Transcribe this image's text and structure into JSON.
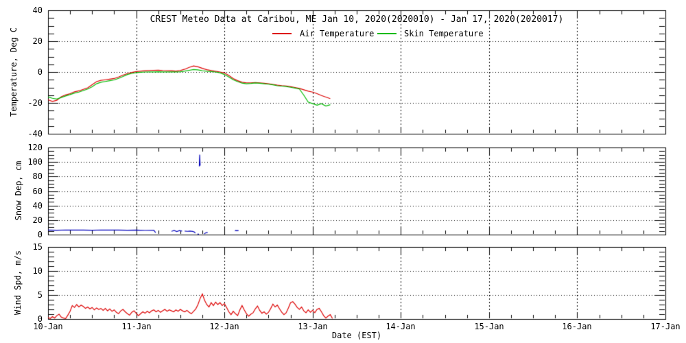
{
  "title": "CREST Meteo Data at Caribou, ME   Jan 10, 2020(2020010) - Jan 17, 2020(2020017)",
  "legend": {
    "air_label": "Air Temperature",
    "skin_label": "Skin Temperature",
    "air_color": "#dd0000",
    "skin_color": "#00bb00"
  },
  "xaxis": {
    "label": "Date (EST)",
    "xlim": [
      10,
      17
    ],
    "tick_values": [
      10,
      11,
      12,
      13,
      14,
      15,
      16,
      17
    ],
    "tick_labels": [
      "10-Jan",
      "11-Jan",
      "12-Jan",
      "13-Jan",
      "14-Jan",
      "15-Jan",
      "16-Jan",
      "17-Jan"
    ],
    "minor_step": 0.25,
    "grid": "dotted vertical at interior day ticks"
  },
  "chart_data": [
    {
      "type": "line",
      "panel": "temperature",
      "ylabel": "Temperature, Deg C",
      "ylim": [
        -40,
        40
      ],
      "yticks": [
        -40,
        -20,
        0,
        20,
        40
      ],
      "yminor": 5,
      "grid": "dotted horizontal at -20, 0, 20",
      "series": [
        {
          "name": "Air Temperature",
          "color": "#dd0000",
          "x0": 10.0,
          "dx": 0.05,
          "y": [
            -18,
            -19,
            -18.3,
            -16,
            -14.8,
            -14,
            -12.8,
            -12.2,
            -11.2,
            -10.2,
            -8.2,
            -6.2,
            -5.4,
            -5,
            -4.6,
            -4.2,
            -3.2,
            -2,
            -1,
            -0.3,
            0.3,
            0.6,
            0.8,
            1,
            1.1,
            1.2,
            1,
            0.9,
            0.8,
            0.6,
            1,
            1.8,
            3,
            3.9,
            3.4,
            2.4,
            1.5,
            1,
            0.5,
            0,
            -0.6,
            -2.2,
            -4.2,
            -5.6,
            -6.6,
            -7,
            -7,
            -6.8,
            -7,
            -7.3,
            -7.6,
            -8,
            -8.5,
            -8.8,
            -9,
            -9.5,
            -10,
            -10.6,
            -11.5,
            -12.4,
            -13,
            -14,
            -15.2,
            -16.2,
            -17.2
          ]
        },
        {
          "name": "Skin Temperature",
          "color": "#00bb00",
          "x0": 10.0,
          "dx": 0.05,
          "y": [
            -16.2,
            -17,
            -17.5,
            -16.5,
            -15.5,
            -14.6,
            -13.6,
            -13,
            -12,
            -11,
            -9.6,
            -7.6,
            -6.6,
            -6.1,
            -5.6,
            -5.1,
            -4.1,
            -2.9,
            -1.6,
            -0.9,
            -0.4,
            -0.2,
            0,
            0.1,
            0.1,
            0.2,
            0.1,
            0.1,
            0.1,
            0.1,
            0.2,
            0.6,
            1.1,
            1.6,
            1.4,
            0.9,
            0.5,
            0.3,
            0,
            -0.5,
            -1.6,
            -3.2,
            -5,
            -6.2,
            -7.2,
            -7.6,
            -7.4,
            -7.1,
            -7.3,
            -7.6,
            -7.9,
            -8.3,
            -8.9,
            -9.1,
            -9.4,
            -9.9,
            -10.4,
            -11,
            -15,
            -19.5,
            -20.5,
            -21.5,
            -20.5,
            -22,
            -21.2
          ]
        }
      ]
    },
    {
      "type": "line",
      "panel": "snow_depth",
      "ylabel": "Snow Dep, cm",
      "ylim": [
        0,
        120
      ],
      "yticks": [
        0,
        20,
        40,
        60,
        80,
        100,
        120
      ],
      "yminor": 5,
      "grid": "dotted horizontal at 20,40,60,80,100",
      "series": [
        {
          "name": "Snow Depth",
          "color": "#0000bb",
          "x": [
            10.0,
            10.1,
            10.2,
            10.3,
            10.4,
            10.5,
            10.6,
            10.7,
            10.8,
            10.9,
            11.0,
            11.1,
            11.2,
            11.22,
            null,
            11.4,
            11.43,
            11.46,
            11.49,
            11.52,
            null,
            11.55,
            11.58,
            11.61,
            11.64,
            11.66,
            11.67,
            null,
            11.695,
            11.71,
            null,
            11.715,
            11.72,
            11.725,
            null,
            11.77,
            11.79,
            11.81,
            null,
            12.12,
            12.13,
            12.14,
            12.15,
            12.16
          ],
          "y": [
            6.3,
            6.1,
            6.4,
            6.2,
            6.3,
            6.0,
            6.4,
            6.2,
            6.3,
            6.1,
            6.3,
            5.9,
            6.0,
            2.8,
            null,
            4.5,
            5.8,
            4.2,
            5.5,
            4.8,
            null,
            4.8,
            4.5,
            4.8,
            4.4,
            3.5,
            2.0,
            null,
            0.8,
            0.6,
            null,
            94,
            110,
            95,
            null,
            1.0,
            2.5,
            3.0,
            null,
            5.0,
            6.0,
            5.2,
            5.8,
            5.3
          ]
        }
      ]
    },
    {
      "type": "line",
      "panel": "wind_speed",
      "ylabel": "Wind Spd, m/s",
      "ylim": [
        0,
        15
      ],
      "yticks": [
        0,
        5,
        10,
        15
      ],
      "yminor": 1,
      "grid": "dotted horizontal at 5,10",
      "series": [
        {
          "name": "Wind Speed",
          "color": "#dd0000",
          "x0": 10.0,
          "dx": 0.025,
          "y": [
            0.3,
            0.1,
            0.5,
            0.2,
            0.7,
            1.0,
            0.4,
            0.2,
            0.1,
            0.8,
            1.6,
            2.8,
            2.4,
            3.0,
            2.5,
            2.9,
            2.6,
            2.2,
            2.5,
            2.1,
            2.4,
            1.9,
            2.3,
            2.0,
            2.2,
            1.8,
            2.2,
            1.7,
            2.1,
            1.6,
            1.9,
            1.4,
            1.1,
            1.7,
            2.0,
            1.5,
            1.1,
            0.8,
            1.4,
            1.7,
            1.2,
            0.7,
            1.1,
            1.5,
            1.2,
            1.6,
            1.3,
            1.7,
            1.9,
            1.5,
            1.8,
            1.4,
            1.7,
            2.0,
            1.6,
            1.9,
            1.7,
            1.5,
            1.9,
            1.6,
            2.0,
            1.7,
            1.5,
            1.8,
            1.4,
            1.1,
            1.6,
            2.1,
            3.0,
            4.3,
            5.2,
            3.9,
            3.0,
            2.5,
            3.4,
            2.8,
            3.5,
            3.0,
            3.4,
            2.8,
            3.2,
            2.4,
            1.5,
            0.9,
            1.6,
            1.1,
            0.7,
            1.9,
            2.8,
            1.9,
            1.1,
            0.6,
            1.0,
            1.3,
            2.1,
            2.7,
            1.8,
            1.2,
            1.5,
            1.0,
            1.4,
            2.2,
            3.1,
            2.5,
            2.9,
            2.1,
            1.4,
            0.9,
            1.3,
            2.3,
            3.4,
            3.6,
            3.1,
            2.4,
            2.0,
            2.5,
            1.7,
            1.3,
            1.9,
            1.4,
            1.8,
            1.3,
            2.0,
            2.2,
            1.5,
            0.7,
            0.2,
            0.6,
            0.9,
            0.1
          ]
        }
      ]
    }
  ]
}
